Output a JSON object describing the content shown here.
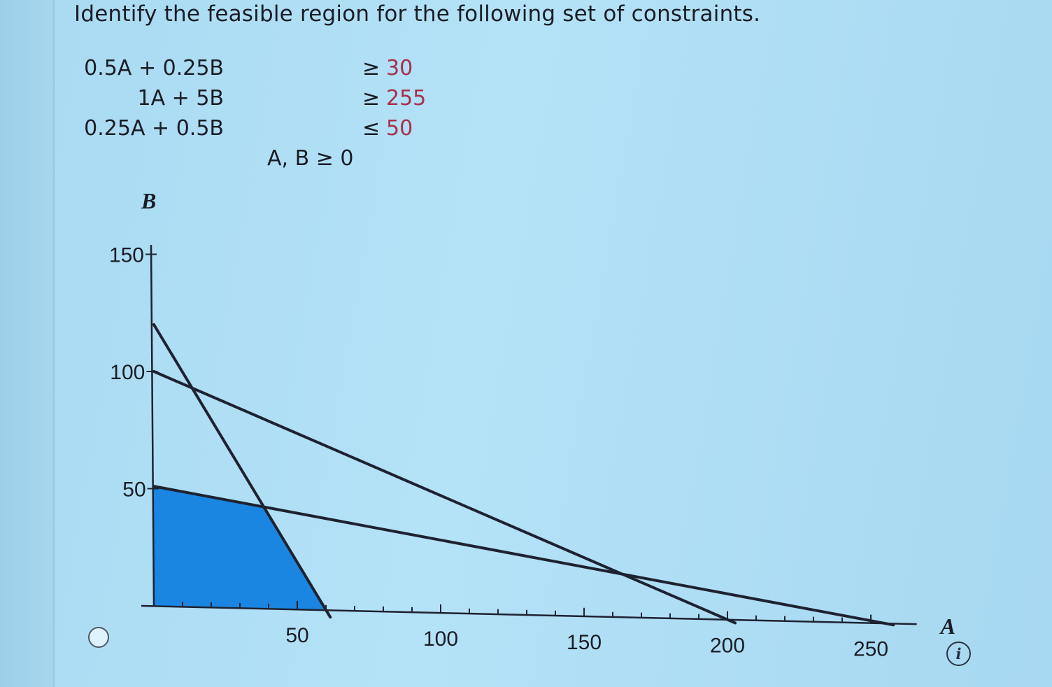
{
  "question": {
    "prompt": "Identify the feasible region for the following set of constraints.",
    "constraints": [
      {
        "lhs": "0.5A + 0.25B",
        "op": "≥",
        "rhs": "30"
      },
      {
        "lhs": "1A + 5B",
        "op": "≥",
        "rhs": "255"
      },
      {
        "lhs": "0.25A + 0.5B",
        "op": "≤",
        "rhs": "50"
      }
    ],
    "nonnegativity": "A, B ≥ 0"
  },
  "colors": {
    "region_fill": "#1a86e2",
    "line": "#1e2230",
    "constant": "#a8304a"
  },
  "answer_option": {
    "selected": false
  },
  "info_icon": {
    "glyph": "i",
    "name": "info-icon"
  },
  "chart_data": {
    "type": "line",
    "xlabel": "A",
    "ylabel": "B",
    "xlim": [
      0,
      260
    ],
    "ylim": [
      0,
      150
    ],
    "x_ticks": [
      50,
      100,
      150,
      200,
      250
    ],
    "y_ticks": [
      50,
      100,
      150
    ],
    "series": [
      {
        "x": [
          0,
          60
        ],
        "y": [
          120,
          0
        ]
      },
      {
        "x": [
          0,
          200
        ],
        "y": [
          100,
          0
        ]
      },
      {
        "x": [
          0,
          255
        ],
        "y": [
          51,
          0
        ]
      }
    ],
    "shaded_region": {
      "polygon": [
        [
          0,
          0
        ],
        [
          0,
          51
        ],
        [
          38.9,
          43.2
        ],
        [
          60,
          0
        ]
      ]
    },
    "grid": false
  }
}
